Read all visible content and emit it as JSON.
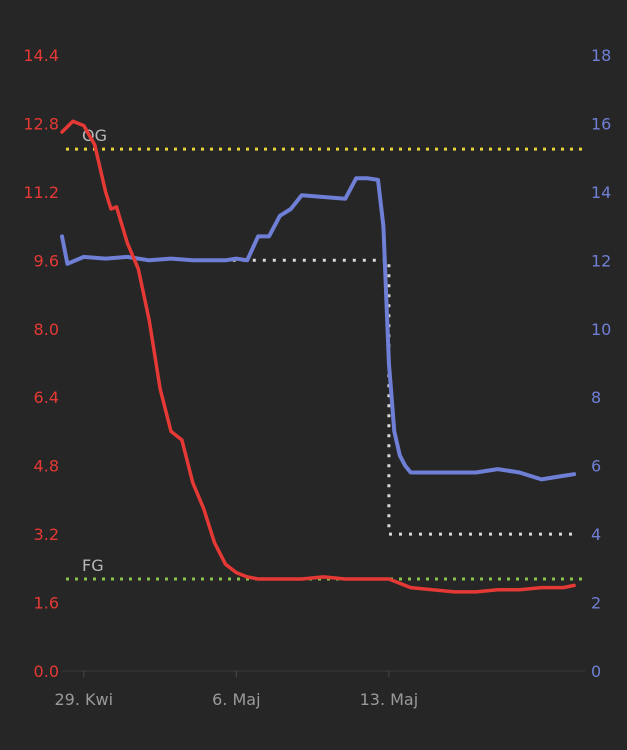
{
  "chart_data": {
    "type": "line",
    "x_axis": {
      "range": [
        "2023-04-28",
        "2023-05-22"
      ],
      "tick_labels": [
        {
          "date": "2023-04-29",
          "label": "29. Kwi"
        },
        {
          "date": "2023-05-06",
          "label": "6. Maj"
        },
        {
          "date": "2023-05-13",
          "label": "13. Maj"
        }
      ],
      "grid": false
    },
    "y_left": {
      "range": [
        0.0,
        14.4
      ],
      "ticks": [
        "0.0",
        "1.6",
        "3.2",
        "4.8",
        "6.4",
        "8.0",
        "9.6",
        "11.2",
        "12.8",
        "14.4"
      ],
      "color": "#e53935",
      "grid": false
    },
    "y_right": {
      "range": [
        0,
        18
      ],
      "ticks": [
        "0",
        "2",
        "4",
        "6",
        "8",
        "10",
        "12",
        "14",
        "16",
        "18"
      ],
      "color": "#6f7fd6",
      "grid": false
    },
    "series": [
      {
        "axis": "left",
        "color": "#e53935",
        "x": [
          "2023-04-28 00:00",
          "2023-04-28 12:00",
          "2023-04-29 00:00",
          "2023-04-29 12:00",
          "2023-04-30 00:00",
          "2023-04-30 06:00",
          "2023-04-30 12:00",
          "2023-05-01 00:00",
          "2023-05-01 12:00",
          "2023-05-02 00:00",
          "2023-05-02 12:00",
          "2023-05-03 00:00",
          "2023-05-03 12:00",
          "2023-05-04 00:00",
          "2023-05-04 12:00",
          "2023-05-05 00:00",
          "2023-05-05 12:00",
          "2023-05-06 00:00",
          "2023-05-06 12:00",
          "2023-05-07 00:00",
          "2023-05-08 00:00",
          "2023-05-09 00:00",
          "2023-05-10 00:00",
          "2023-05-11 00:00",
          "2023-05-12 00:00",
          "2023-05-13 00:00",
          "2023-05-14 00:00",
          "2023-05-15 00:00",
          "2023-05-16 00:00",
          "2023-05-17 00:00",
          "2023-05-18 00:00",
          "2023-05-19 00:00",
          "2023-05-20 00:00",
          "2023-05-21 00:00",
          "2023-05-21 12:00"
        ],
        "values": [
          12.6,
          12.85,
          12.75,
          12.3,
          11.2,
          10.8,
          10.85,
          10.0,
          9.4,
          8.2,
          6.6,
          5.6,
          5.4,
          4.4,
          3.8,
          3.0,
          2.5,
          2.3,
          2.2,
          2.15,
          2.15,
          2.15,
          2.2,
          2.15,
          2.15,
          2.15,
          1.95,
          1.9,
          1.85,
          1.85,
          1.9,
          1.9,
          1.95,
          1.95,
          2.0
        ]
      },
      {
        "axis": "right",
        "color": "#6f7fd6",
        "x": [
          "2023-04-28 00:00",
          "2023-04-28 06:00",
          "2023-04-29 00:00",
          "2023-04-30 00:00",
          "2023-05-01 00:00",
          "2023-05-02 00:00",
          "2023-05-03 00:00",
          "2023-05-04 00:00",
          "2023-05-05 00:00",
          "2023-05-05 12:00",
          "2023-05-06 00:00",
          "2023-05-06 12:00",
          "2023-05-07 00:00",
          "2023-05-07 12:00",
          "2023-05-08 00:00",
          "2023-05-08 12:00",
          "2023-05-09 00:00",
          "2023-05-10 00:00",
          "2023-05-11 00:00",
          "2023-05-11 12:00",
          "2023-05-12 00:00",
          "2023-05-12 12:00",
          "2023-05-12 18:00",
          "2023-05-13 00:00",
          "2023-05-13 06:00",
          "2023-05-13 12:00",
          "2023-05-13 18:00",
          "2023-05-14 00:00",
          "2023-05-15 00:00",
          "2023-05-16 00:00",
          "2023-05-17 00:00",
          "2023-05-18 00:00",
          "2023-05-19 00:00",
          "2023-05-20 00:00",
          "2023-05-21 00:00",
          "2023-05-21 12:00"
        ],
        "values": [
          12.7,
          11.9,
          12.1,
          12.05,
          12.1,
          12.0,
          12.05,
          12.0,
          12.0,
          12.0,
          12.05,
          12.0,
          12.7,
          12.7,
          13.3,
          13.5,
          13.9,
          13.85,
          13.8,
          14.4,
          14.4,
          14.35,
          13.0,
          9.0,
          7.0,
          6.3,
          6.0,
          5.8,
          5.8,
          5.8,
          5.8,
          5.9,
          5.8,
          5.6,
          5.7,
          5.75
        ]
      }
    ],
    "reference_lines": [
      {
        "label": "OG",
        "axis": "left",
        "value": 12.2,
        "color": "#e7d23a",
        "style": "dotted"
      },
      {
        "label": "FG",
        "axis": "left",
        "value": 2.15,
        "color": "#8bc34a",
        "style": "dotted"
      }
    ],
    "step_line": {
      "axis": "right",
      "color": "#d9d9d9",
      "style": "dotted",
      "x": [
        "2023-05-04 00:00",
        "2023-05-13 00:00",
        "2023-05-13 00:00",
        "2023-05-21 12:00"
      ],
      "values": [
        12.0,
        12.0,
        4.0,
        4.0
      ]
    }
  }
}
